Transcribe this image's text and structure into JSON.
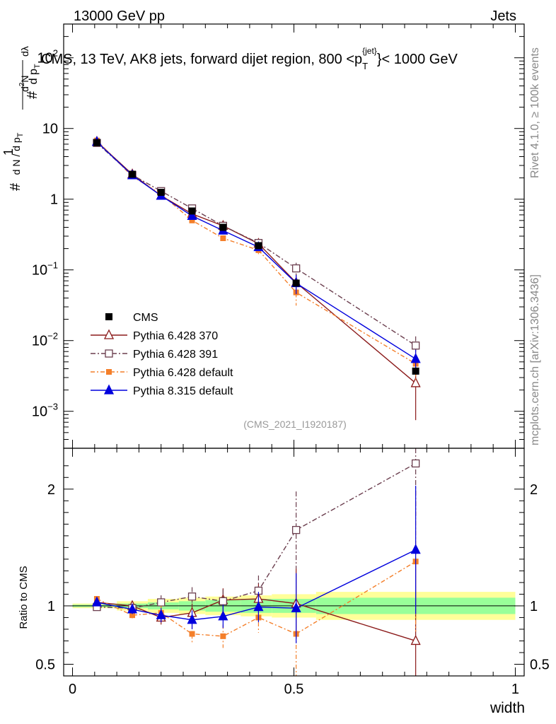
{
  "header": {
    "left": "13000 GeV pp",
    "right": "Jets"
  },
  "side_labels": {
    "rivet": "Rivet 4.1.0, ≥ 100k events",
    "mcplots": "mcplots.cern.ch [arXiv:1306.3436]"
  },
  "chart_data": {
    "type": "scatter",
    "title": "CMS, 13 TeV, AK8 jets, forward dijet region, 800 <p_T^{jet}< 1000 GeV",
    "title_parts": {
      "prefix": "CMS, 13 TeV, AK8 jets, forward dijet region, 800 <p",
      "sup": "{jet}",
      "sub": "T",
      "suffix": "}< 1000 GeV"
    },
    "analysis_id": "(CMS_2021_I1920187)",
    "xlabel": "width",
    "ylabel_main": "1/N dN/dp_T d²N/dp_T dλ",
    "ylabel_ratio": "Ratio to CMS",
    "xlim": [
      -0.02,
      1.02
    ],
    "ylim_main": [
      0.0003,
      300
    ],
    "ylim_ratio": [
      0.4,
      2.35
    ],
    "xticks": [
      {
        "value": 0,
        "label": "0"
      },
      {
        "value": 0.5,
        "label": "0.5"
      },
      {
        "value": 1,
        "label": "1"
      }
    ],
    "yticks_main": [
      {
        "value": 0.001,
        "mant": "10",
        "exp": "−3"
      },
      {
        "value": 0.01,
        "mant": "10",
        "exp": "−2"
      },
      {
        "value": 0.1,
        "mant": "10",
        "exp": "−1"
      },
      {
        "value": 1,
        "mant": "1",
        "exp": ""
      },
      {
        "value": 10,
        "mant": "10",
        "exp": ""
      },
      {
        "value": 100,
        "mant": "10",
        "exp": "2"
      }
    ],
    "yticks_ratio": [
      {
        "value": 0.5,
        "label": "0.5"
      },
      {
        "value": 1,
        "label": "1"
      },
      {
        "value": 2,
        "label": "2"
      }
    ],
    "bins": [
      {
        "lo": 0.0,
        "hi": 0.1
      },
      {
        "lo": 0.1,
        "hi": 0.17
      },
      {
        "lo": 0.17,
        "hi": 0.24
      },
      {
        "lo": 0.24,
        "hi": 0.3
      },
      {
        "lo": 0.3,
        "hi": 0.38
      },
      {
        "lo": 0.38,
        "hi": 0.45
      },
      {
        "lo": 0.45,
        "hi": 0.55
      },
      {
        "lo": 0.55,
        "hi": 1.0
      }
    ],
    "x": [
      0.055,
      0.135,
      0.2,
      0.27,
      0.34,
      0.42,
      0.505,
      0.775
    ],
    "data": {
      "name": "CMS",
      "values": [
        6.3,
        2.25,
        1.25,
        0.68,
        0.4,
        0.22,
        0.065,
        0.0037
      ],
      "stat_band": [
        0.01,
        0.02,
        0.03,
        0.04,
        0.05,
        0.06,
        0.06,
        0.07
      ],
      "total_band": [
        0.02,
        0.04,
        0.06,
        0.07,
        0.08,
        0.09,
        0.1,
        0.12
      ]
    },
    "series": [
      {
        "name": "Pythia 6.428 370",
        "color": "#8b1a1a",
        "marker": "open-triangle",
        "dash": "",
        "values": [
          6.5,
          2.25,
          1.12,
          0.62,
          0.42,
          0.235,
          0.066,
          0.0025
        ],
        "errors": [
          0.02,
          0.03,
          0.05,
          0.06,
          0.07,
          0.09,
          0.3,
          0.7
        ],
        "ratio": [
          1.03,
          1.0,
          0.9,
          0.94,
          1.05,
          1.06,
          1.02,
          0.7
        ],
        "ratio_errors": [
          0.02,
          0.04,
          0.06,
          0.08,
          0.1,
          0.13,
          0.3,
          0.7
        ]
      },
      {
        "name": "Pythia 6.428 391",
        "color": "#6b3e4e",
        "marker": "open-square",
        "dash": "7,3,2,3",
        "values": [
          6.25,
          2.2,
          1.3,
          0.74,
          0.42,
          0.24,
          0.105,
          0.0085
        ],
        "errors": [
          0.02,
          0.03,
          0.05,
          0.06,
          0.08,
          0.1,
          0.2,
          0.35
        ],
        "ratio": [
          0.99,
          0.98,
          1.03,
          1.08,
          1.04,
          1.13,
          1.65,
          2.22
        ],
        "ratio_errors": [
          0.02,
          0.04,
          0.06,
          0.08,
          0.1,
          0.13,
          0.33,
          0.45
        ]
      },
      {
        "name": "Pythia 6.428 default",
        "color": "#f47f2a",
        "marker": "filled-square",
        "dash": "6,3,2,3",
        "values": [
          6.75,
          2.1,
          1.18,
          0.5,
          0.28,
          0.19,
          0.048,
          0.0047
        ],
        "errors": [
          0.02,
          0.03,
          0.06,
          0.08,
          0.1,
          0.12,
          0.35,
          0.45
        ],
        "ratio": [
          1.06,
          0.92,
          0.94,
          0.76,
          0.74,
          0.9,
          0.76,
          1.38
        ],
        "ratio_errors": [
          0.02,
          0.04,
          0.06,
          0.08,
          0.1,
          0.13,
          0.5,
          0.6
        ]
      },
      {
        "name": "Pythia 8.315 default",
        "color": "#0000dd",
        "marker": "filled-triangle",
        "dash": "",
        "values": [
          6.45,
          2.18,
          1.12,
          0.58,
          0.36,
          0.21,
          0.065,
          0.0055
        ],
        "errors": [
          0.02,
          0.03,
          0.05,
          0.07,
          0.09,
          0.11,
          0.3,
          0.35
        ],
        "ratio": [
          1.03,
          0.97,
          0.92,
          0.88,
          0.91,
          0.99,
          0.98,
          1.48
        ],
        "ratio_errors": [
          0.02,
          0.04,
          0.06,
          0.08,
          0.1,
          0.13,
          0.3,
          0.55
        ]
      }
    ],
    "legend": {
      "position": "lower-left"
    }
  }
}
